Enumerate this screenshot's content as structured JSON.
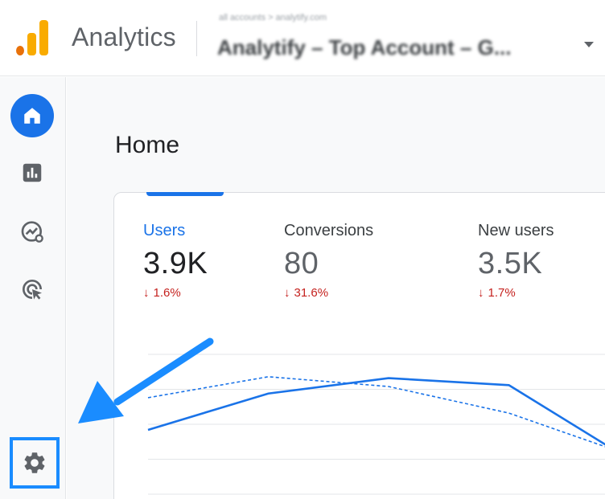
{
  "header": {
    "app_title": "Analytics",
    "account_line": "all accounts > analytify.com",
    "property": "Analytify – Top Account – G...",
    "logo_icon": "google-analytics-logo",
    "dropdown_icon": "caret-down-icon"
  },
  "sidebar": {
    "items": [
      {
        "name": "home",
        "icon": "home-icon",
        "active": true
      },
      {
        "name": "reports",
        "icon": "bar-chart-icon",
        "active": false
      },
      {
        "name": "explore",
        "icon": "explore-trend-icon",
        "active": false
      },
      {
        "name": "advertising",
        "icon": "target-cursor-icon",
        "active": false
      }
    ],
    "settings_icon": "gear-icon"
  },
  "main": {
    "page_title": "Home",
    "metrics": [
      {
        "label": "Users",
        "value": "3.9K",
        "delta": "1.6%",
        "direction": "down"
      },
      {
        "label": "Conversions",
        "value": "80",
        "delta": "31.6%",
        "direction": "down"
      },
      {
        "label": "New users",
        "value": "3.5K",
        "delta": "1.7%",
        "direction": "down"
      }
    ]
  },
  "colors": {
    "accent": "#1a73e8",
    "negative": "#c5221f",
    "annotation": "#1a8cff"
  },
  "chart_data": {
    "type": "line",
    "x": [
      0,
      1,
      2,
      3,
      4
    ],
    "series": [
      {
        "values": [
          0.46,
          0.72,
          0.83,
          0.78,
          0.25
        ],
        "style": "solid"
      },
      {
        "values": [
          0.69,
          0.84,
          0.77,
          0.58,
          0.28
        ],
        "style": "dashed"
      }
    ],
    "ylim": [
      0,
      1
    ],
    "grid": true
  }
}
